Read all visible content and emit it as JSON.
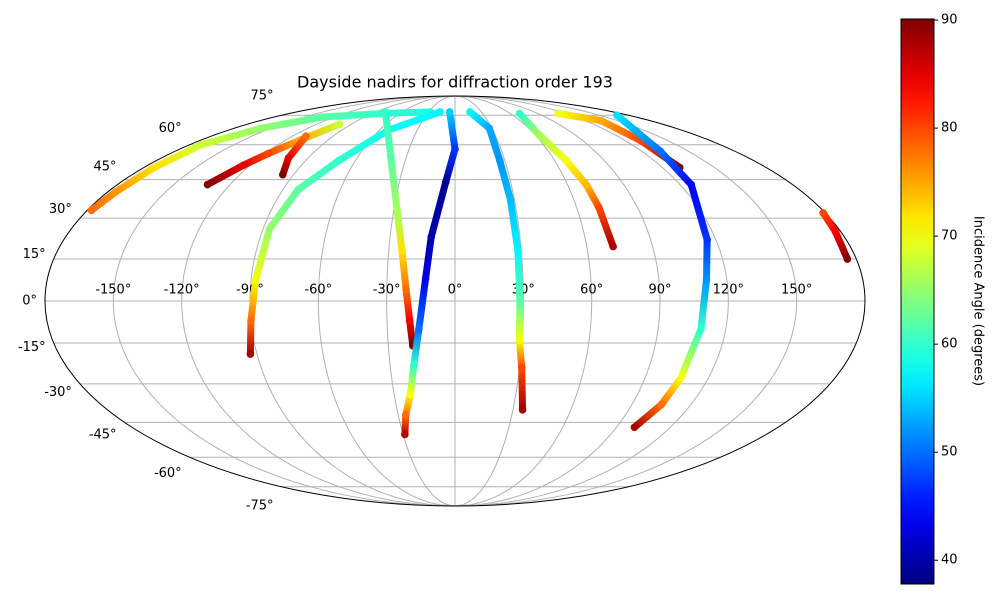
{
  "chart_data": {
    "type": "scatter",
    "projection": "mollweide",
    "title": "Dayside nadirs for diffraction order 193",
    "colormap": "jet",
    "clim": [
      37.8,
      90.1
    ],
    "cticks": [
      40,
      50,
      60,
      70,
      80,
      90
    ],
    "colorbar_label": "Incidence Angle (degrees)",
    "grid": true,
    "xlim": [
      -180,
      180
    ],
    "ylim": [
      -90,
      90
    ],
    "xticks": [
      {
        "value": -150,
        "label": "-150°"
      },
      {
        "value": -120,
        "label": "-120°"
      },
      {
        "value": -90,
        "label": "-90°"
      },
      {
        "value": -60,
        "label": "-60°"
      },
      {
        "value": -30,
        "label": "-30°"
      },
      {
        "value": 0,
        "label": "0°"
      },
      {
        "value": 30,
        "label": "30°"
      },
      {
        "value": 60,
        "label": "60°"
      },
      {
        "value": 90,
        "label": "90°"
      },
      {
        "value": 120,
        "label": "120°"
      },
      {
        "value": 150,
        "label": "150°"
      }
    ],
    "yticks": [
      {
        "value": -75,
        "label": "-75°"
      },
      {
        "value": -60,
        "label": "-60°"
      },
      {
        "value": -45,
        "label": "-45°"
      },
      {
        "value": -30,
        "label": "-30°"
      },
      {
        "value": -15,
        "label": "-15°"
      },
      {
        "value": 0,
        "label": "0°"
      },
      {
        "value": 15,
        "label": "15°"
      },
      {
        "value": 30,
        "label": "30°"
      },
      {
        "value": 45,
        "label": "45°"
      },
      {
        "value": 60,
        "label": "60°"
      },
      {
        "value": 75,
        "label": "75°"
      }
    ],
    "series": [
      {
        "x": [
          -178,
          -176,
          -174,
          -172,
          -158,
          -132,
          -80,
          -28
        ],
        "y": [
          33,
          40,
          50,
          60,
          68,
          74,
          76,
          77
        ],
        "values": [
          78,
          76,
          72,
          68,
          65,
          62,
          60,
          59
        ]
      },
      {
        "x": [
          -132,
          -124,
          -118,
          -110,
          -100
        ],
        "y": [
          43,
          51,
          56,
          62,
          70
        ],
        "values": [
          90,
          85,
          80,
          75,
          68
        ]
      },
      {
        "x": [
          -96,
          -102,
          -110
        ],
        "y": [
          47,
          54,
          64
        ],
        "values": [
          90,
          85,
          78
        ]
      },
      {
        "x": [
          -93,
          -90,
          -88,
          -87,
          -82,
          -70,
          -53,
          -17
        ],
        "y": [
          -19,
          -7,
          7.5,
          26,
          41,
          53,
          67,
          77
        ],
        "values": [
          88,
          78,
          70,
          65,
          62,
          60,
          58,
          57
        ]
      },
      {
        "x": [
          -79,
          -40,
          -28,
          -24,
          -21.5,
          -20,
          -19
        ],
        "y": [
          77,
          55,
          32,
          18,
          4,
          -7,
          -16
        ],
        "values": [
          60,
          62,
          66,
          72,
          78,
          84,
          90
        ]
      },
      {
        "x": [
          -6,
          0,
          -5,
          -11,
          -13,
          -16,
          -19,
          -22,
          -26,
          -29
        ],
        "y": [
          77,
          58,
          44,
          23,
          8,
          -10,
          -23,
          -34,
          -42,
          -50
        ],
        "values": [
          55,
          47,
          39,
          40,
          43,
          50,
          60,
          70,
          78,
          87
        ]
      },
      {
        "x": [
          17,
          28,
          27,
          28,
          28.5,
          28.5,
          28.8,
          31,
          35
        ],
        "y": [
          77,
          68,
          53,
          37,
          18,
          0,
          -14,
          -24,
          -40
        ],
        "values": [
          57,
          53,
          52,
          54,
          57,
          62,
          70,
          80,
          88
        ]
      },
      {
        "x": [
          70,
          63,
          67,
          70,
          71,
          72
        ],
        "y": [
          76,
          64.5,
          53,
          43,
          34,
          19.5
        ],
        "values": [
          60,
          66,
          70,
          74,
          80,
          88
        ]
      },
      {
        "x": [
          112,
          135,
          131,
          130
        ],
        "y": [
          76,
          72,
          62,
          50
        ],
        "values": [
          70,
          75,
          80,
          90
        ]
      },
      {
        "x": [
          168,
          132,
          126,
          116,
          111,
          109,
          107,
          105,
          100
        ],
        "y": [
          75,
          57,
          43,
          22,
          7.5,
          -10,
          -28,
          -38,
          -47
        ],
        "values": [
          56,
          50,
          44,
          47,
          52,
          60,
          70,
          78,
          88
        ]
      },
      {
        "x": [
          179,
          177.5,
          176
        ],
        "y": [
          32,
          25,
          15
        ],
        "values": [
          80,
          84,
          90
        ]
      }
    ]
  }
}
